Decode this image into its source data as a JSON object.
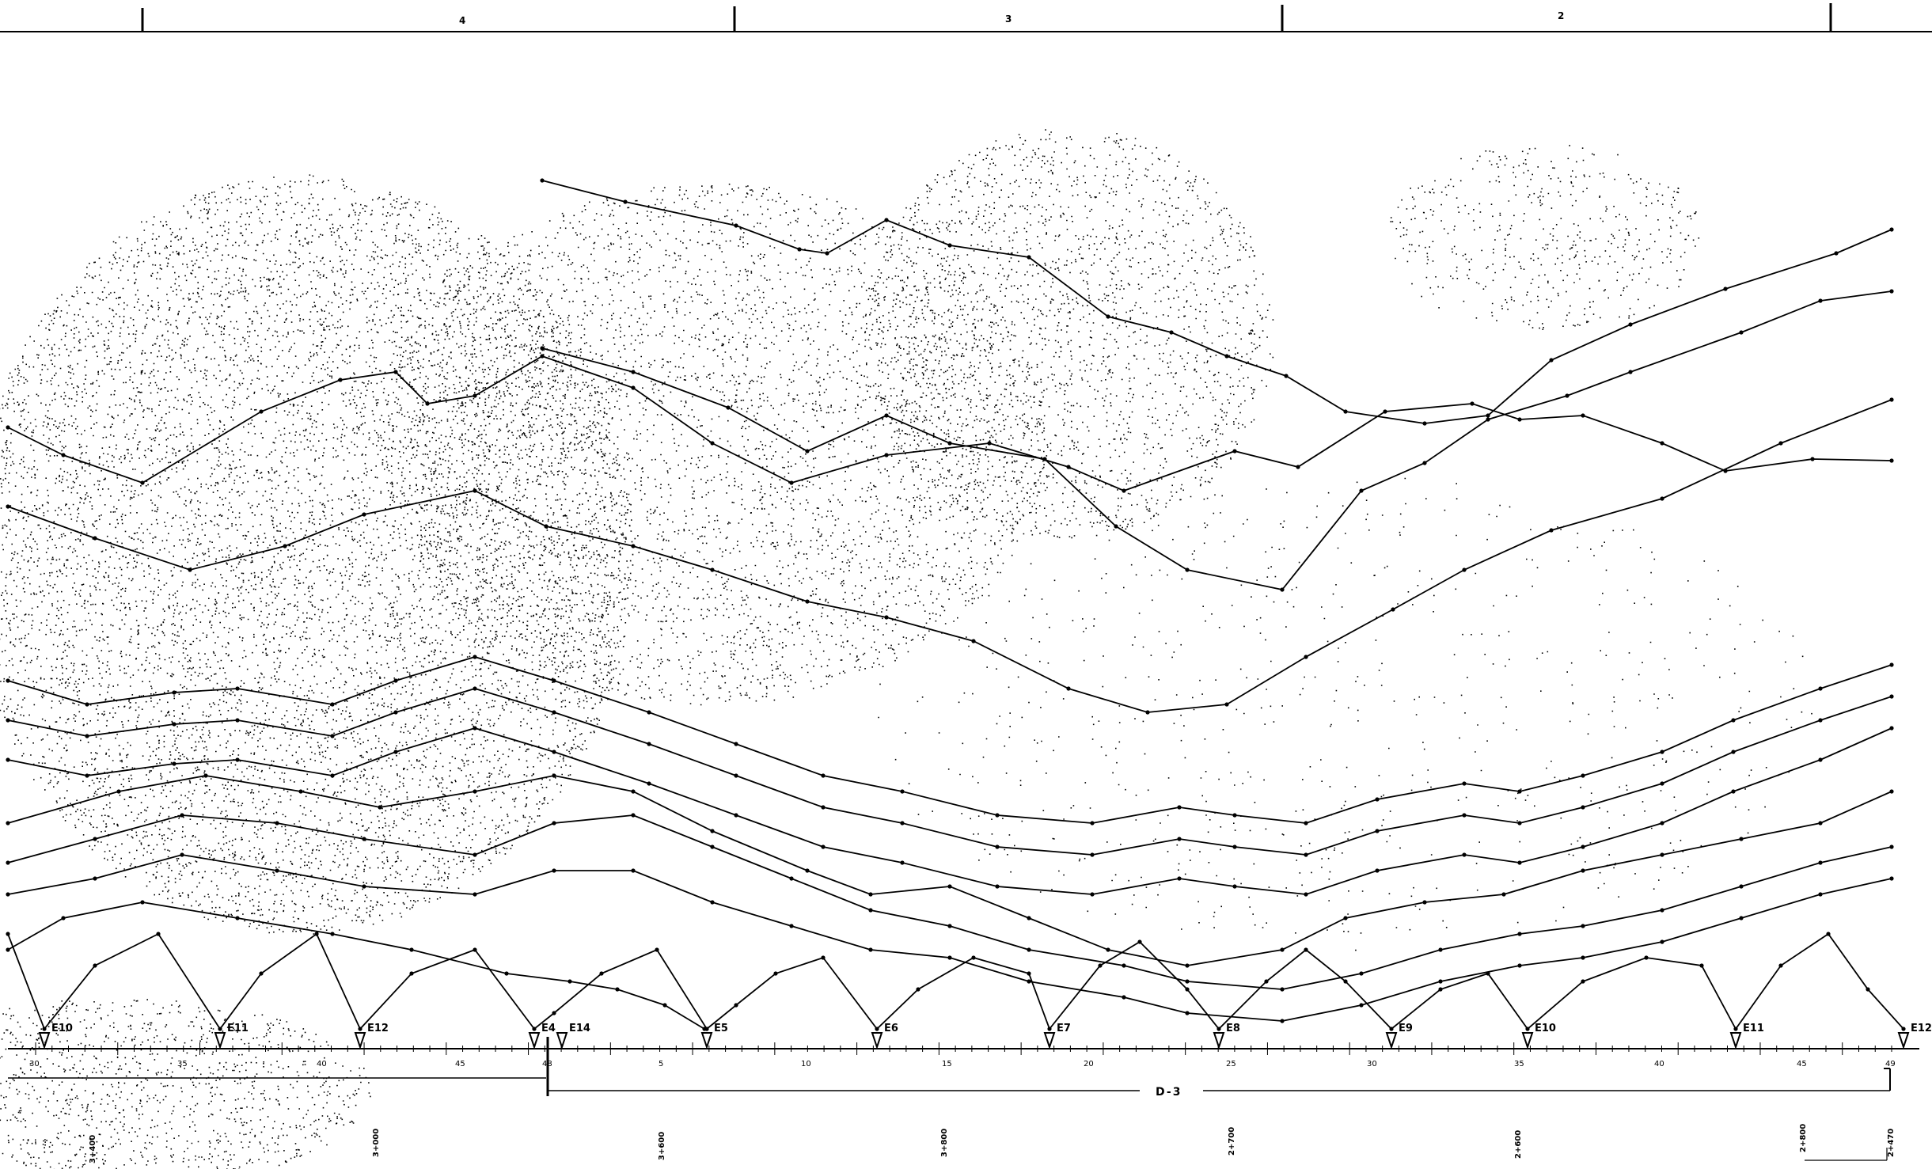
{
  "sections": [
    "4",
    "3",
    "2"
  ],
  "shot_labels": [
    "E10",
    "E11",
    "E12",
    "E4",
    "E14",
    "E5",
    "E6",
    "E7",
    "E8",
    "E9",
    "E10",
    "E11",
    "E12"
  ],
  "axis_ticks": [
    "30",
    "35",
    "40",
    "45",
    "48",
    "5",
    "10",
    "15",
    "20",
    "25",
    "30",
    "35",
    "40",
    "45",
    "49"
  ],
  "profile_label": "D-3",
  "stations": [
    "3+400",
    "3+000",
    "3+600",
    "3+800",
    "2+700",
    "2+600",
    "2+800",
    "2+470"
  ]
}
